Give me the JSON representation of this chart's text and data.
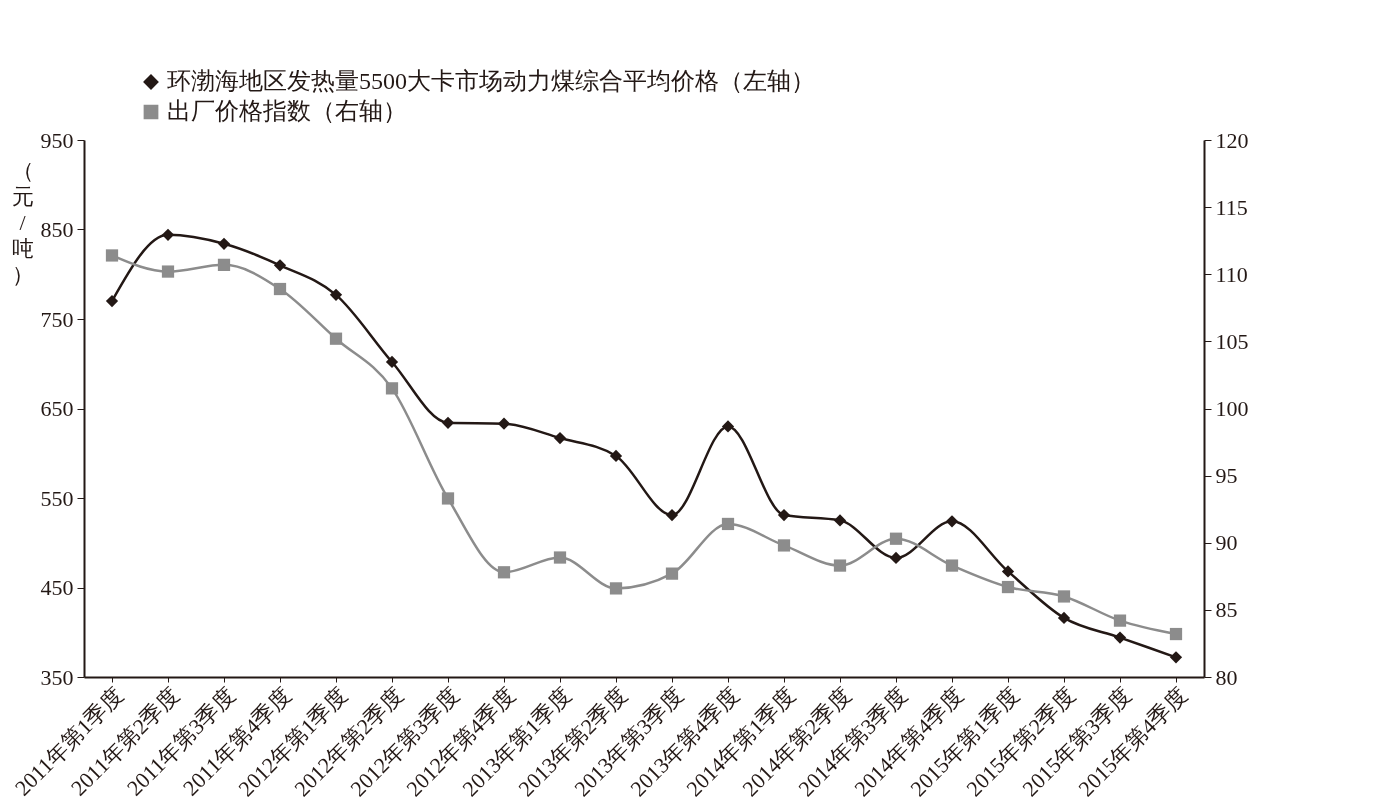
{
  "chart_data": {
    "type": "line",
    "ylabel": "（元/吨）",
    "categories": [
      "2011年第1季度",
      "2011年第2季度",
      "2011年第3季度",
      "2011年第4季度",
      "2012年第1季度",
      "2012年第2季度",
      "2012年第3季度",
      "2012年第4季度",
      "2013年第1季度",
      "2013年第2季度",
      "2013年第3季度",
      "2013年第4季度",
      "2014年第1季度",
      "2014年第2季度",
      "2014年第3季度",
      "2014年第4季度",
      "2015年第1季度",
      "2015年第2季度",
      "2015年第3季度",
      "2015年第4季度"
    ],
    "series": [
      {
        "name": "环渤海地区发热量5500大卡市场动力煤综合平均价格（左轴）",
        "color": "#231815",
        "marker": "diamond",
        "values": [
          770,
          844,
          834,
          810,
          777,
          702,
          634,
          633,
          617,
          597,
          531,
          630,
          531,
          525,
          483,
          524,
          468,
          416,
          394,
          372
        ]
      },
      {
        "name": "出厂价格指数（右轴）",
        "color": "#8c8c8c",
        "marker": "square",
        "axis": "y2",
        "values": [
          111.4,
          110.2,
          110.7,
          108.9,
          105.2,
          101.5,
          93.3,
          87.8,
          88.9,
          86.6,
          87.7,
          91.4,
          89.8,
          88.3,
          90.3,
          88.3,
          86.7,
          86.0,
          84.2,
          83.2
        ]
      }
    ],
    "ylim": [
      350,
      950
    ],
    "yticks": [
      350,
      450,
      550,
      650,
      750,
      850,
      950
    ],
    "y2lim": [
      80,
      120
    ],
    "y2ticks": [
      80,
      85,
      90,
      95,
      100,
      105,
      110,
      115,
      120
    ],
    "legend": "top left",
    "grid": false,
    "line_style": "solid"
  }
}
